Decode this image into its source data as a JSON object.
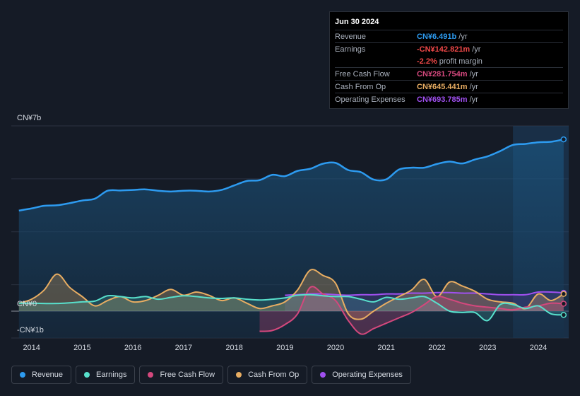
{
  "colors": {
    "revenue": "#2d9bf0",
    "earnings": "#58e0cc",
    "fcf": "#d4487d",
    "cfo": "#e8ad62",
    "opex": "#a050f0",
    "negative": "#f04848"
  },
  "tooltip": {
    "date": "Jun 30 2024",
    "rows": [
      {
        "label": "Revenue",
        "value": "CN¥6.491b",
        "unit": "/yr",
        "color": "#2d9bf0"
      },
      {
        "label": "Earnings",
        "value": "-CN¥142.821m",
        "unit": "/yr",
        "color": "#f04848"
      },
      {
        "label": "",
        "value": "-2.2%",
        "unit": "profit margin",
        "color": "#f04848"
      },
      {
        "label": "Free Cash Flow",
        "value": "CN¥281.754m",
        "unit": "/yr",
        "color": "#d4487d"
      },
      {
        "label": "Cash From Op",
        "value": "CN¥645.441m",
        "unit": "/yr",
        "color": "#e8ad62"
      },
      {
        "label": "Operating Expenses",
        "value": "CN¥693.785m",
        "unit": "/yr",
        "color": "#a050f0"
      }
    ]
  },
  "legend": [
    {
      "label": "Revenue",
      "color": "#2d9bf0"
    },
    {
      "label": "Earnings",
      "color": "#58e0cc"
    },
    {
      "label": "Free Cash Flow",
      "color": "#d4487d"
    },
    {
      "label": "Cash From Op",
      "color": "#e8ad62"
    },
    {
      "label": "Operating Expenses",
      "color": "#a050f0"
    }
  ],
  "chart_data": {
    "type": "line",
    "title": "",
    "xlabel": "",
    "ylabel": "",
    "ylim": [
      -1,
      7
    ],
    "xlim": [
      2013.6,
      2024.6
    ],
    "y_tick_labels": [
      {
        "value": 7,
        "label": "CN¥7b"
      },
      {
        "value": 0,
        "label": "CN¥0"
      },
      {
        "value": -1,
        "label": "-CN¥1b"
      }
    ],
    "x_tick_labels": [
      "2014",
      "2015",
      "2016",
      "2017",
      "2018",
      "2019",
      "2020",
      "2021",
      "2022",
      "2023",
      "2024"
    ],
    "x_tick_values": [
      2014,
      2015,
      2016,
      2017,
      2018,
      2019,
      2020,
      2021,
      2022,
      2023,
      2024
    ],
    "highlight_start": 2023.5,
    "series": [
      {
        "name": "Revenue",
        "key": "revenue",
        "x": [
          2013.75,
          2014.0,
          2014.25,
          2014.5,
          2014.75,
          2015.0,
          2015.25,
          2015.5,
          2015.75,
          2016.0,
          2016.25,
          2016.5,
          2016.75,
          2017.0,
          2017.25,
          2017.5,
          2017.75,
          2018.0,
          2018.25,
          2018.5,
          2018.75,
          2019.0,
          2019.25,
          2019.5,
          2019.75,
          2020.0,
          2020.25,
          2020.5,
          2020.75,
          2021.0,
          2021.25,
          2021.5,
          2021.75,
          2022.0,
          2022.25,
          2022.5,
          2022.75,
          2023.0,
          2023.25,
          2023.5,
          2023.75,
          2024.0,
          2024.25,
          2024.5
        ],
        "values": [
          3.8,
          3.88,
          3.98,
          4.0,
          4.08,
          4.18,
          4.25,
          4.55,
          4.56,
          4.58,
          4.6,
          4.55,
          4.52,
          4.55,
          4.55,
          4.52,
          4.58,
          4.75,
          4.92,
          4.95,
          5.15,
          5.1,
          5.3,
          5.38,
          5.57,
          5.6,
          5.33,
          5.25,
          4.97,
          4.98,
          5.35,
          5.42,
          5.42,
          5.56,
          5.65,
          5.58,
          5.73,
          5.85,
          6.05,
          6.28,
          6.32,
          6.38,
          6.4,
          6.49
        ]
      },
      {
        "name": "Earnings",
        "key": "earnings",
        "x": [
          2013.75,
          2014.0,
          2014.5,
          2015.0,
          2015.25,
          2015.5,
          2015.75,
          2016.0,
          2016.25,
          2016.5,
          2016.75,
          2017.0,
          2017.25,
          2017.5,
          2017.75,
          2018.0,
          2018.25,
          2018.5,
          2018.75,
          2019.0,
          2019.25,
          2019.5,
          2019.75,
          2020.0,
          2020.25,
          2020.5,
          2020.75,
          2021.0,
          2021.25,
          2021.5,
          2021.75,
          2022.0,
          2022.25,
          2022.5,
          2022.75,
          2023.0,
          2023.25,
          2023.5,
          2023.75,
          2024.0,
          2024.25,
          2024.5
        ],
        "values": [
          0.3,
          0.3,
          0.29,
          0.35,
          0.38,
          0.58,
          0.55,
          0.5,
          0.55,
          0.45,
          0.52,
          0.58,
          0.55,
          0.5,
          0.48,
          0.5,
          0.45,
          0.42,
          0.45,
          0.5,
          0.6,
          0.62,
          0.58,
          0.55,
          0.55,
          0.45,
          0.35,
          0.52,
          0.45,
          0.5,
          0.55,
          0.3,
          0.0,
          -0.05,
          -0.05,
          -0.35,
          0.25,
          0.25,
          0.1,
          0.2,
          -0.1,
          -0.14
        ]
      },
      {
        "name": "Free Cash Flow",
        "key": "fcf",
        "x": [
          2018.5,
          2018.75,
          2019.0,
          2019.25,
          2019.5,
          2019.75,
          2020.0,
          2020.25,
          2020.5,
          2020.75,
          2021.0,
          2021.25,
          2021.5,
          2021.75,
          2022.0,
          2022.25,
          2022.5,
          2022.75,
          2023.0,
          2023.25,
          2023.5,
          2023.75,
          2024.0,
          2024.25,
          2024.5
        ],
        "values": [
          -0.75,
          -0.72,
          -0.5,
          -0.1,
          0.9,
          0.65,
          0.4,
          -0.35,
          -0.85,
          -0.65,
          -0.45,
          -0.25,
          -0.05,
          0.25,
          0.55,
          0.45,
          0.3,
          0.2,
          0.15,
          0.1,
          0.05,
          0.15,
          0.2,
          0.3,
          0.28
        ]
      },
      {
        "name": "Cash From Op",
        "key": "cfo",
        "x": [
          2013.75,
          2014.0,
          2014.25,
          2014.5,
          2014.75,
          2015.0,
          2015.25,
          2015.5,
          2015.75,
          2016.0,
          2016.25,
          2016.5,
          2016.75,
          2017.0,
          2017.25,
          2017.5,
          2017.75,
          2018.0,
          2018.25,
          2018.5,
          2018.75,
          2019.0,
          2019.25,
          2019.5,
          2019.75,
          2020.0,
          2020.25,
          2020.5,
          2020.75,
          2021.0,
          2021.25,
          2021.5,
          2021.75,
          2022.0,
          2022.25,
          2022.5,
          2022.75,
          2023.0,
          2023.25,
          2023.5,
          2023.75,
          2024.0,
          2024.25,
          2024.5
        ],
        "values": [
          0.3,
          0.45,
          0.8,
          1.4,
          0.9,
          0.55,
          0.2,
          0.4,
          0.55,
          0.35,
          0.4,
          0.6,
          0.82,
          0.6,
          0.72,
          0.6,
          0.4,
          0.5,
          0.3,
          0.1,
          0.2,
          0.35,
          0.8,
          1.55,
          1.35,
          1.05,
          -0.1,
          -0.3,
          0.0,
          0.3,
          0.55,
          0.8,
          1.2,
          0.55,
          1.1,
          0.95,
          0.75,
          0.45,
          0.35,
          0.3,
          0.1,
          0.65,
          0.4,
          0.65
        ]
      },
      {
        "name": "Operating Expenses",
        "key": "opex",
        "x": [
          2019.0,
          2019.25,
          2019.5,
          2019.75,
          2020.0,
          2020.25,
          2020.5,
          2020.75,
          2021.0,
          2021.25,
          2021.5,
          2021.75,
          2022.0,
          2022.25,
          2022.5,
          2022.75,
          2023.0,
          2023.25,
          2023.5,
          2023.75,
          2024.0,
          2024.25,
          2024.5
        ],
        "values": [
          0.6,
          0.62,
          0.65,
          0.65,
          0.62,
          0.6,
          0.62,
          0.62,
          0.65,
          0.65,
          0.68,
          0.68,
          0.7,
          0.7,
          0.68,
          0.68,
          0.65,
          0.62,
          0.62,
          0.62,
          0.72,
          0.72,
          0.69
        ]
      }
    ]
  }
}
